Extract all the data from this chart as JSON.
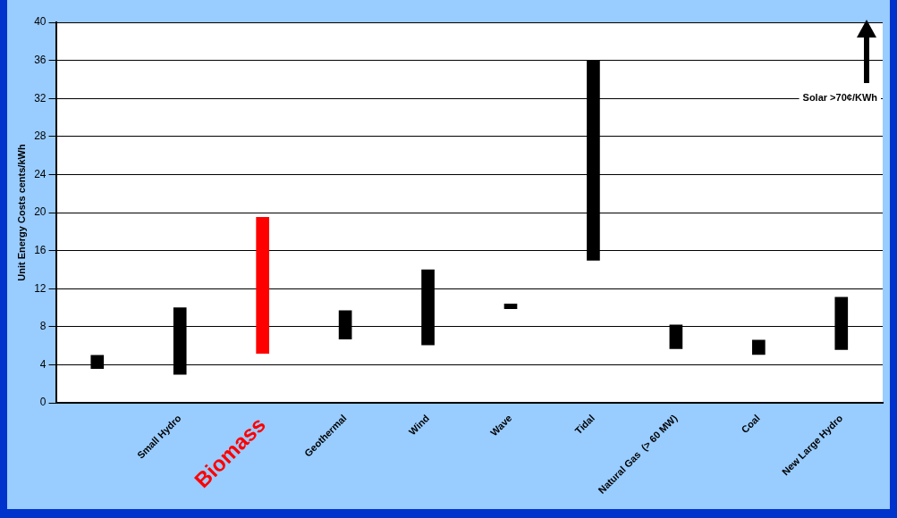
{
  "chart_data": {
    "type": "bar",
    "ylabel": "Unit Energy Costs cents/kWh",
    "categories": [
      null,
      "Small Hydro",
      "Biomass",
      "Geothermal",
      "Wind",
      "Wave",
      "Tidal",
      "Natural Gas  (> 60 MW)",
      "Coal",
      "New Large Hydro"
    ],
    "base": [
      3.6,
      3.0,
      5.2,
      6.7,
      6.1,
      9.9,
      15.0,
      5.7,
      5.1,
      5.6
    ],
    "values": [
      1.4,
      7.0,
      14.3,
      3.0,
      7.9,
      0.5,
      21.0,
      2.5,
      1.5,
      5.5
    ],
    "colors": [
      "#000000",
      "#000000",
      "#ff0000",
      "#000000",
      "#000000",
      "#000000",
      "#000000",
      "#000000",
      "#000000",
      "#000000"
    ],
    "ylim": [
      0,
      40
    ],
    "yticks": [
      0,
      4,
      8,
      12,
      16,
      20,
      24,
      28,
      32,
      36,
      40
    ],
    "grid": "y",
    "legend": false,
    "annotations": [
      "Solar >70¢/KWh"
    ]
  }
}
